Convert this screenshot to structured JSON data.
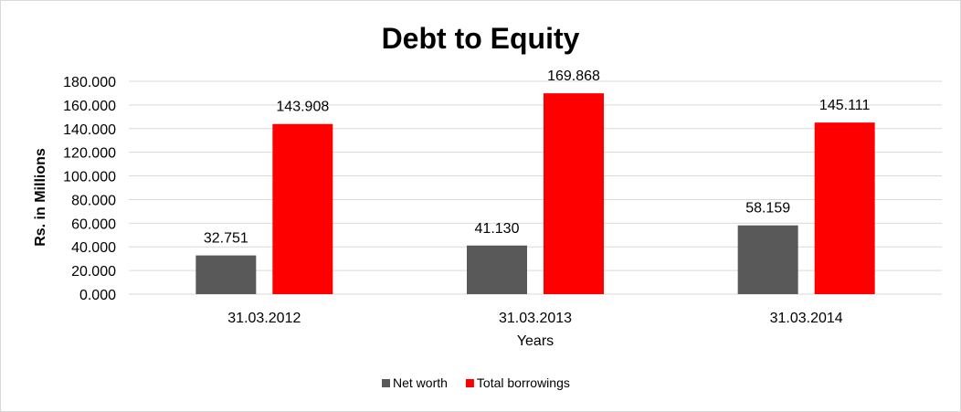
{
  "chart_data": {
    "type": "bar",
    "title": "Debt to Equity",
    "xlabel": "Years",
    "ylabel": "Rs. in Millions",
    "categories": [
      "31.03.2012",
      "31.03.2013",
      "31.03.2014"
    ],
    "series": [
      {
        "name": "Net worth",
        "values": [
          32.751,
          41.13,
          58.159
        ],
        "labels": [
          "32.751",
          "41.130",
          "58.159"
        ],
        "color": "#595959"
      },
      {
        "name": "Total borrowings",
        "values": [
          143.908,
          169.868,
          145.111
        ],
        "labels": [
          "143.908",
          "169.868",
          "145.111"
        ],
        "color": "#ff0000"
      }
    ],
    "ylim": [
      0,
      180
    ],
    "yticks": [
      "0.000",
      "20.000",
      "40.000",
      "60.000",
      "80.000",
      "100.000",
      "120.000",
      "140.000",
      "160.000",
      "180.000"
    ],
    "grid": true,
    "gridColor": "#d9d9d9",
    "legend": "bottom"
  }
}
